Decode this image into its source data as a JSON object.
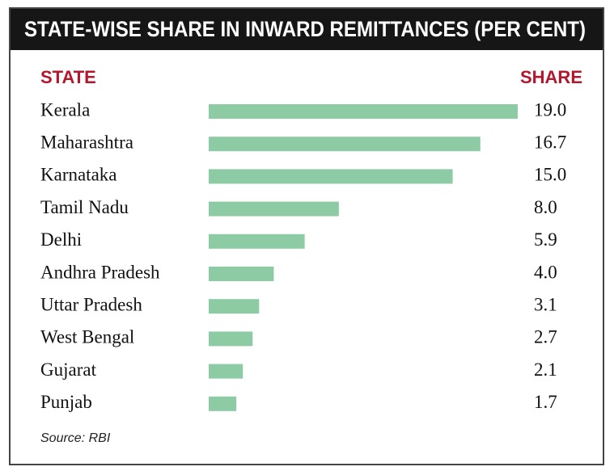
{
  "chart_data": {
    "type": "bar",
    "orientation": "horizontal",
    "title": "STATE-WISE SHARE IN INWARD REMITTANCES (PER CENT)",
    "category_header": "STATE",
    "value_header": "SHARE",
    "categories": [
      "Kerala",
      "Maharashtra",
      "Karnataka",
      "Tamil Nadu",
      "Delhi",
      "Andhra Pradesh",
      "Uttar Pradesh",
      "West Bengal",
      "Gujarat",
      "Punjab"
    ],
    "values": [
      19.0,
      16.7,
      15.0,
      8.0,
      5.9,
      4.0,
      3.1,
      2.7,
      2.1,
      1.7
    ],
    "value_labels": [
      "19.0",
      "16.7",
      "15.0",
      "8.0",
      "5.9",
      "4.0",
      "3.1",
      "2.7",
      "2.1",
      "1.7"
    ],
    "color": "#8ccba4",
    "source": "Source: RBI"
  }
}
